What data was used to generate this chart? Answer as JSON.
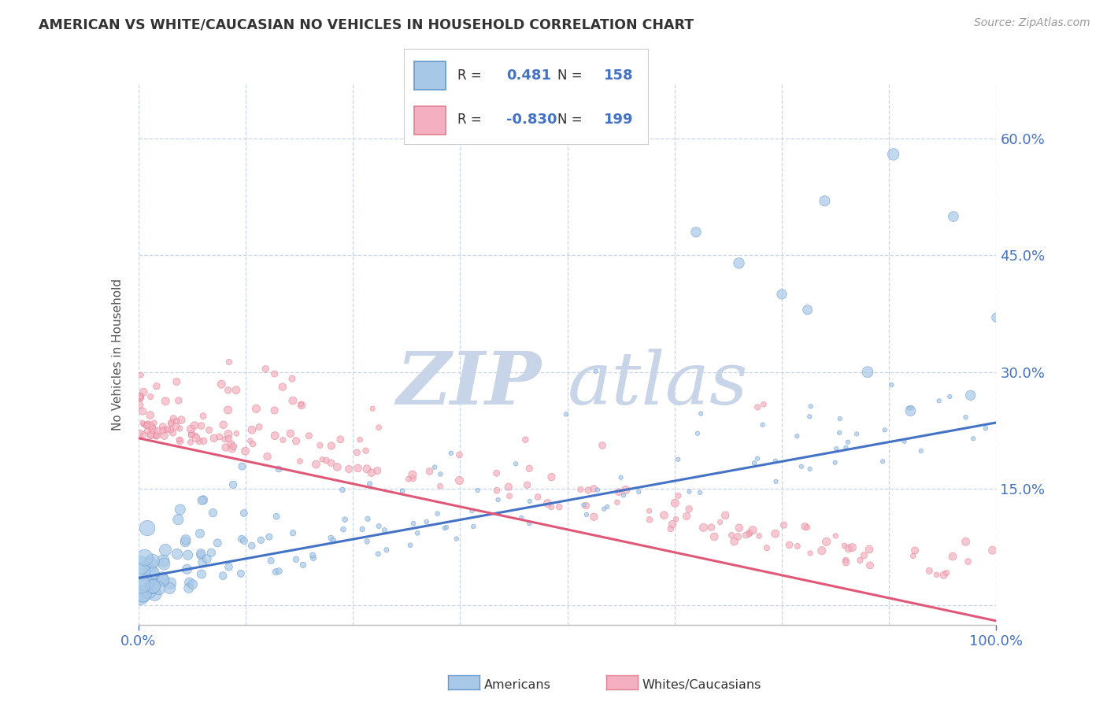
{
  "title": "AMERICAN VS WHITE/CAUCASIAN NO VEHICLES IN HOUSEHOLD CORRELATION CHART",
  "source": "Source: ZipAtlas.com",
  "ylabel": "No Vehicles in Household",
  "legend_blue_r": "0.481",
  "legend_blue_n": "158",
  "legend_pink_r": "-0.830",
  "legend_pink_n": "199",
  "blue_fill": "#a8c8e8",
  "blue_edge": "#6699cc",
  "pink_fill": "#f4b0c0",
  "pink_edge": "#e08090",
  "trend_blue": "#4472c4",
  "trend_pink": "#e05878",
  "watermark_zip": "ZIP",
  "watermark_atlas": "atlas",
  "watermark_color": "#c8d4e8",
  "background_color": "#ffffff",
  "grid_color": "#c8d4e8",
  "title_color": "#333333",
  "tick_color": "#4472c4",
  "ylabel_color": "#555555",
  "source_color": "#999999",
  "legend_text_color": "#333333",
  "legend_val_color": "#4472c4",
  "bottom_label_color": "#333333",
  "blue_trend_start_y": 0.035,
  "blue_trend_end_y": 0.235,
  "pink_trend_start_y": 0.215,
  "pink_trend_end_y": -0.02,
  "xmin": 0,
  "xmax": 100,
  "ymin": -0.025,
  "ymax": 0.67,
  "yticks": [
    0.0,
    0.15,
    0.3,
    0.45,
    0.6
  ],
  "ytick_labels": [
    "",
    "15.0%",
    "30.0%",
    "45.0%",
    "60.0%"
  ],
  "seed_blue": 42,
  "seed_pink": 99,
  "n_blue": 158,
  "n_pink": 199
}
